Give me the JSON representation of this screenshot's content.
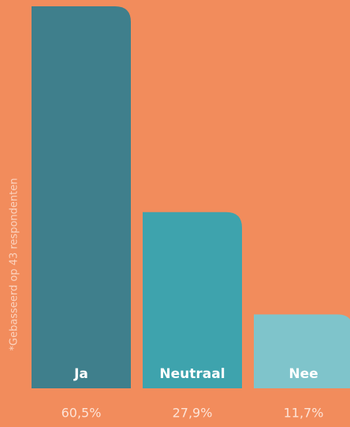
{
  "chart_data": {
    "type": "bar",
    "categories": [
      "Ja",
      "Neutraal",
      "Nee"
    ],
    "values": [
      60.5,
      27.9,
      11.7
    ],
    "value_labels": [
      "60,5%",
      "27,9%",
      "11,7%"
    ],
    "colors": [
      "#3f7f8c",
      "#3ea3ad",
      "#7fc4cb"
    ],
    "annotation": "*Gebasseerd op 43 respondenten"
  }
}
